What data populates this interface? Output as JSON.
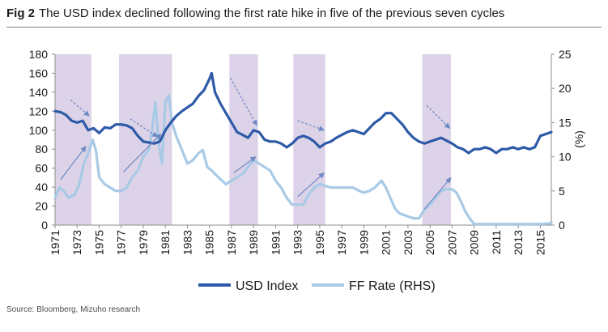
{
  "figure": {
    "label": "Fig 2",
    "title": "The USD index declined following the first rate hike in five of the previous seven cycles",
    "source": "Source: Bloomberg, Mizuho research"
  },
  "colors": {
    "usd_index": "#2e5aa8",
    "ff_rate": "#a8cae6",
    "shade": "#ddd3e8",
    "arrow": "#6f89c4",
    "axis": "#8c8c8c"
  },
  "chart_data": {
    "type": "line",
    "xlabel": "",
    "ylabel_left": "",
    "ylabel_right": "(%)",
    "xlim": [
      1971,
      2016
    ],
    "ylim_left": [
      0,
      180
    ],
    "ylim_right": [
      0,
      25
    ],
    "yticks_left": [
      0,
      20,
      40,
      60,
      80,
      100,
      120,
      140,
      160,
      180
    ],
    "yticks_right": [
      0,
      5,
      10,
      15,
      20,
      25
    ],
    "xticks": [
      "1971",
      "1973",
      "1975",
      "1977",
      "1979",
      "1981",
      "1983",
      "1985",
      "1987",
      "1989",
      "1991",
      "1993",
      "1995",
      "1997",
      "1999",
      "2001",
      "2003",
      "2005",
      "2007",
      "2009",
      "2011",
      "2013",
      "2015"
    ],
    "grid": false,
    "legend_position": "bottom",
    "shaded_periods": [
      [
        1971.0,
        1974.3
      ],
      [
        1976.8,
        1981.6
      ],
      [
        1986.8,
        1989.4
      ],
      [
        1992.6,
        1995.5
      ],
      [
        2004.3,
        2006.9
      ]
    ],
    "annotations": [
      {
        "type": "arrow",
        "style": "dashed",
        "axis": "left",
        "from": [
          1972.4,
          132
        ],
        "to": [
          1974.1,
          115
        ]
      },
      {
        "type": "arrow",
        "style": "solid",
        "axis": "left",
        "from": [
          1971.5,
          48
        ],
        "to": [
          1973.8,
          83
        ]
      },
      {
        "type": "arrow",
        "style": "dashed",
        "axis": "left",
        "from": [
          1977.8,
          112
        ],
        "to": [
          1980.3,
          93
        ]
      },
      {
        "type": "arrow",
        "style": "solid",
        "axis": "left",
        "from": [
          1977.2,
          56
        ],
        "to": [
          1980.6,
          96
        ]
      },
      {
        "type": "arrow",
        "style": "dashed",
        "axis": "left",
        "from": [
          1986.9,
          155
        ],
        "to": [
          1989.3,
          105
        ]
      },
      {
        "type": "arrow",
        "style": "solid",
        "axis": "left",
        "from": [
          1987.2,
          55
        ],
        "to": [
          1989.2,
          72
        ]
      },
      {
        "type": "arrow",
        "style": "dashed",
        "axis": "left",
        "from": [
          1993.0,
          110
        ],
        "to": [
          1995.4,
          100
        ]
      },
      {
        "type": "arrow",
        "style": "solid",
        "axis": "left",
        "from": [
          1993.0,
          30
        ],
        "to": [
          1995.4,
          55
        ]
      },
      {
        "type": "arrow",
        "style": "dashed",
        "axis": "left",
        "from": [
          2004.7,
          126
        ],
        "to": [
          2006.8,
          102
        ]
      },
      {
        "type": "arrow",
        "style": "solid",
        "axis": "left",
        "from": [
          2004.5,
          17
        ],
        "to": [
          2006.9,
          50
        ]
      }
    ],
    "series": [
      {
        "name": "USD Index",
        "axis": "left",
        "x": [
          1971.0,
          1971.5,
          1972.0,
          1972.5,
          1973.0,
          1973.5,
          1974.0,
          1974.5,
          1975.0,
          1975.5,
          1976.0,
          1976.5,
          1977.0,
          1977.5,
          1978.0,
          1978.5,
          1979.0,
          1979.5,
          1980.0,
          1980.5,
          1981.0,
          1981.5,
          1982.0,
          1982.5,
          1983.0,
          1983.5,
          1984.0,
          1984.5,
          1985.0,
          1985.2,
          1985.5,
          1986.0,
          1986.5,
          1987.0,
          1987.5,
          1988.0,
          1988.5,
          1989.0,
          1989.5,
          1990.0,
          1990.5,
          1991.0,
          1991.5,
          1992.0,
          1992.5,
          1993.0,
          1993.5,
          1994.0,
          1994.5,
          1995.0,
          1995.5,
          1996.0,
          1996.5,
          1997.0,
          1997.5,
          1998.0,
          1998.5,
          1999.0,
          1999.5,
          2000.0,
          2000.5,
          2001.0,
          2001.5,
          2002.0,
          2002.5,
          2003.0,
          2003.5,
          2004.0,
          2004.5,
          2005.0,
          2005.5,
          2006.0,
          2006.5,
          2007.0,
          2007.5,
          2008.0,
          2008.5,
          2009.0,
          2009.5,
          2010.0,
          2010.5,
          2011.0,
          2011.5,
          2012.0,
          2012.5,
          2013.0,
          2013.5,
          2014.0,
          2014.5,
          2015.0,
          2015.5,
          2016.0
        ],
        "y": [
          120,
          119,
          116,
          110,
          108,
          110,
          100,
          102,
          97,
          103,
          102,
          106,
          106,
          105,
          102,
          94,
          88,
          87,
          86,
          88,
          100,
          108,
          115,
          120,
          124,
          128,
          136,
          142,
          154,
          160,
          140,
          128,
          118,
          108,
          98,
          95,
          92,
          100,
          98,
          90,
          88,
          88,
          86,
          82,
          86,
          92,
          94,
          92,
          88,
          82,
          86,
          88,
          92,
          95,
          98,
          100,
          98,
          96,
          102,
          108,
          112,
          118,
          118,
          112,
          106,
          98,
          92,
          88,
          86,
          88,
          90,
          92,
          89,
          86,
          82,
          80,
          76,
          80,
          80,
          82,
          80,
          76,
          80,
          80,
          82,
          80,
          82,
          80,
          82,
          94,
          96,
          98
        ]
      },
      {
        "name": "FF Rate (RHS)",
        "axis": "right",
        "x": [
          1971.0,
          1971.4,
          1971.8,
          1972.2,
          1972.8,
          1973.2,
          1973.6,
          1974.0,
          1974.4,
          1974.7,
          1975.0,
          1975.5,
          1976.0,
          1976.5,
          1977.0,
          1977.5,
          1978.0,
          1978.5,
          1979.0,
          1979.5,
          1979.8,
          1980.1,
          1980.4,
          1980.7,
          1981.0,
          1981.3,
          1981.6,
          1982.0,
          1982.5,
          1983.0,
          1983.5,
          1984.0,
          1984.4,
          1984.8,
          1985.2,
          1985.8,
          1986.5,
          1987.0,
          1987.5,
          1988.0,
          1988.5,
          1989.0,
          1989.5,
          1990.0,
          1990.5,
          1991.0,
          1991.5,
          1992.0,
          1992.5,
          1993.0,
          1993.5,
          1994.0,
          1994.5,
          1995.0,
          1995.5,
          1996.0,
          1997.0,
          1998.0,
          1998.6,
          1999.0,
          1999.5,
          2000.0,
          2000.6,
          2001.0,
          2001.4,
          2001.8,
          2002.2,
          2003.0,
          2003.5,
          2004.0,
          2004.5,
          2005.0,
          2005.5,
          2006.0,
          2006.5,
          2007.0,
          2007.4,
          2007.8,
          2008.2,
          2008.6,
          2009.0,
          2012.0,
          2015.0,
          2015.8,
          2016.0
        ],
        "y": [
          4,
          5.5,
          5,
          4,
          4.5,
          6,
          9,
          10.5,
          12.5,
          11,
          7,
          6,
          5.5,
          5,
          5,
          5.5,
          7,
          8,
          10,
          11,
          14,
          18,
          12,
          9,
          18,
          19,
          15,
          13,
          11,
          9,
          9.5,
          10.5,
          11,
          8.5,
          8,
          7,
          6,
          6.5,
          7,
          7.5,
          8.5,
          9.5,
          9,
          8.5,
          8,
          6.5,
          5.5,
          4,
          3,
          3,
          3,
          4.5,
          5.5,
          6,
          5.75,
          5.5,
          5.5,
          5.5,
          5,
          4.75,
          5,
          5.5,
          6.5,
          5.5,
          4,
          2.5,
          1.75,
          1.25,
          1,
          1,
          2.25,
          3,
          4,
          5,
          5.25,
          5.25,
          4.75,
          3.5,
          2,
          1,
          0.15,
          0.15,
          0.15,
          0.25,
          0.4
        ]
      }
    ]
  }
}
